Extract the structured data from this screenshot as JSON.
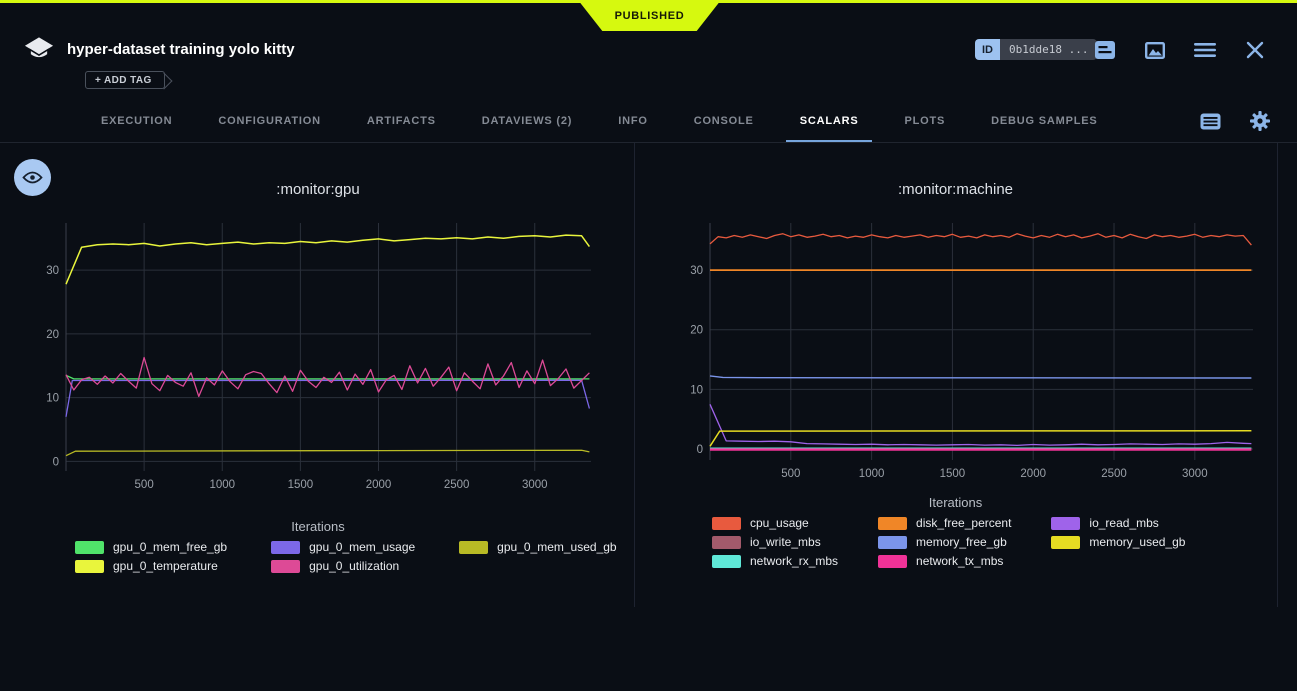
{
  "app": {
    "published_label": "PUBLISHED",
    "title": "hyper-dataset training yolo kitty",
    "add_tag_label": "+ ADD TAG",
    "id_label": "ID",
    "id_value": "0b1dde18 ...",
    "accent_yellow": "#d6f90f",
    "icon_blue": "#8cb5e8"
  },
  "tabs": {
    "items": [
      {
        "label": "EXECUTION",
        "active": false
      },
      {
        "label": "CONFIGURATION",
        "active": false
      },
      {
        "label": "ARTIFACTS",
        "active": false
      },
      {
        "label": "DATAVIEWS (2)",
        "active": false
      },
      {
        "label": "INFO",
        "active": false
      },
      {
        "label": "CONSOLE",
        "active": false
      },
      {
        "label": "SCALARS",
        "active": true
      },
      {
        "label": "PLOTS",
        "active": false
      },
      {
        "label": "DEBUG SAMPLES",
        "active": false
      }
    ]
  },
  "chart_data": [
    {
      "type": "line",
      "title": ":monitor:gpu",
      "xlabel": "Iterations",
      "xlim": [
        0,
        3360
      ],
      "ylim": [
        -1.5,
        37.4
      ],
      "xticks": [
        500,
        1000,
        1500,
        2000,
        2500,
        3000
      ],
      "yticks": [
        0,
        10,
        20,
        30
      ],
      "grid": true,
      "legend_position": "bottom",
      "series": [
        {
          "name": "gpu_0_mem_free_gb",
          "color": "#50e36a",
          "width": 1.3,
          "x": [
            0,
            50,
            3350
          ],
          "y": [
            13.5,
            12.95,
            12.95
          ]
        },
        {
          "name": "gpu_0_mem_usage",
          "color": "#7c68e8",
          "width": 1.3,
          "x": [
            0,
            40,
            3300,
            3350
          ],
          "y": [
            7.0,
            12.7,
            12.72,
            8.3
          ]
        },
        {
          "name": "gpu_0_mem_used_gb",
          "color": "#b8ba25",
          "width": 1.3,
          "x": [
            0,
            60,
            1600,
            3300,
            3350
          ],
          "y": [
            0.9,
            1.6,
            1.68,
            1.75,
            1.5
          ]
        },
        {
          "name": "gpu_0_temperature",
          "color": "#e9f53c",
          "width": 1.5,
          "x": [
            0,
            100,
            200,
            300,
            400,
            500,
            600,
            700,
            800,
            900,
            1000,
            1100,
            1200,
            1300,
            1400,
            1500,
            1600,
            1700,
            1800,
            1900,
            2000,
            2100,
            2200,
            2300,
            2400,
            2500,
            2600,
            2700,
            2800,
            2900,
            3000,
            3100,
            3200,
            3300,
            3350
          ],
          "y": [
            27.8,
            33.6,
            34.0,
            34.1,
            34.0,
            34.2,
            33.8,
            34.1,
            34.3,
            34.0,
            34.2,
            34.4,
            34.1,
            34.3,
            34.2,
            34.5,
            34.3,
            34.6,
            34.4,
            34.7,
            34.9,
            34.6,
            34.8,
            35.0,
            34.9,
            35.1,
            34.9,
            35.2,
            35.0,
            35.3,
            35.4,
            35.2,
            35.5,
            35.4,
            33.7
          ]
        },
        {
          "name": "gpu_0_utilization",
          "color": "#dd4a96",
          "width": 1.3,
          "x0": 0,
          "dx": 50,
          "y": [
            13.6,
            11.2,
            12.8,
            13.2,
            12.1,
            13.4,
            12.3,
            13.8,
            12.6,
            11.5,
            16.3,
            12.2,
            11.1,
            13.5,
            12.4,
            11.8,
            13.9,
            10.2,
            13.1,
            12.0,
            14.2,
            12.5,
            11.4,
            13.6,
            14.1,
            13.8,
            12.2,
            10.8,
            13.4,
            11.0,
            14.3,
            12.6,
            11.6,
            13.2,
            12.4,
            14.0,
            11.2,
            13.7,
            12.1,
            14.4,
            10.9,
            12.8,
            13.5,
            11.3,
            15.0,
            12.3,
            14.6,
            11.8,
            13.2,
            14.8,
            11.1,
            13.9,
            12.6,
            11.4,
            15.3,
            12.0,
            13.4,
            15.5,
            11.6,
            14.2,
            12.2,
            15.9,
            11.9,
            13.0,
            14.5,
            11.5,
            12.7,
            13.9
          ]
        }
      ]
    },
    {
      "type": "line",
      "title": ":monitor:machine",
      "xlabel": "Iterations",
      "xlim": [
        0,
        3360
      ],
      "ylim": [
        -1.85,
        37.9
      ],
      "xticks": [
        500,
        1000,
        1500,
        2000,
        2500,
        3000
      ],
      "yticks": [
        0,
        10,
        20,
        30
      ],
      "grid": true,
      "legend_position": "bottom",
      "series": [
        {
          "name": "cpu_usage",
          "color": "#e85a3e",
          "width": 1.3,
          "x0": 0,
          "dx": 50,
          "y": [
            34.4,
            35.6,
            35.4,
            35.8,
            35.5,
            35.9,
            35.6,
            35.3,
            35.8,
            36.1,
            35.6,
            35.9,
            35.5,
            35.7,
            36.0,
            35.6,
            35.8,
            35.4,
            35.7,
            35.5,
            35.9,
            35.6,
            35.4,
            35.8,
            35.5,
            35.7,
            35.9,
            35.5,
            35.8,
            35.6,
            36.0,
            35.5,
            35.7,
            35.4,
            35.9,
            35.6,
            35.8,
            35.5,
            36.1,
            35.7,
            35.4,
            35.8,
            35.5,
            36.0,
            35.6,
            35.9,
            35.4,
            35.7,
            36.1,
            35.5,
            35.8,
            35.4,
            36.0,
            35.6,
            35.3,
            35.9,
            35.6,
            35.8,
            35.5,
            35.7,
            36.0,
            35.5,
            35.8,
            35.6,
            35.9,
            35.7,
            35.8,
            34.2
          ]
        },
        {
          "name": "disk_free_percent",
          "color": "#f08627",
          "width": 1.8,
          "x": [
            0,
            3350
          ],
          "y": [
            30,
            30
          ]
        },
        {
          "name": "io_read_mbs",
          "color": "#9f63ea",
          "width": 1.3,
          "x": [
            0,
            100,
            200,
            300,
            400,
            500,
            600,
            700,
            800,
            900,
            1000,
            1100,
            1200,
            1300,
            1400,
            1500,
            1600,
            1700,
            1800,
            1900,
            2000,
            2100,
            2200,
            2300,
            2400,
            2500,
            2600,
            2700,
            2800,
            2900,
            3000,
            3100,
            3200,
            3300,
            3350
          ],
          "y": [
            7.5,
            1.35,
            1.3,
            1.25,
            1.3,
            1.2,
            0.9,
            0.85,
            0.8,
            0.75,
            0.8,
            0.7,
            0.75,
            0.7,
            0.65,
            0.7,
            0.75,
            0.65,
            0.7,
            0.6,
            0.75,
            0.65,
            0.7,
            0.8,
            0.7,
            0.75,
            0.85,
            0.8,
            0.75,
            0.85,
            0.8,
            0.9,
            1.1,
            0.95,
            0.9
          ]
        },
        {
          "name": "io_write_mbs",
          "color": "#a35a6b",
          "width": 1.3,
          "x": [
            0,
            3350
          ],
          "y": [
            0.1,
            0.1
          ]
        },
        {
          "name": "memory_free_gb",
          "color": "#7b95ea",
          "width": 1.4,
          "x": [
            0,
            80,
            300,
            3350
          ],
          "y": [
            12.25,
            12.0,
            11.95,
            11.9
          ]
        },
        {
          "name": "memory_used_gb",
          "color": "#e6dc22",
          "width": 1.5,
          "x": [
            0,
            60,
            3350
          ],
          "y": [
            0.45,
            3.0,
            3.05
          ]
        },
        {
          "name": "network_rx_mbs",
          "color": "#5fe8d8",
          "width": 1.3,
          "x": [
            0,
            3350
          ],
          "y": [
            0.15,
            0.15
          ]
        },
        {
          "name": "network_tx_mbs",
          "color": "#f03297",
          "width": 2.4,
          "x": [
            0,
            3350
          ],
          "y": [
            -0.1,
            -0.1
          ]
        }
      ]
    }
  ]
}
